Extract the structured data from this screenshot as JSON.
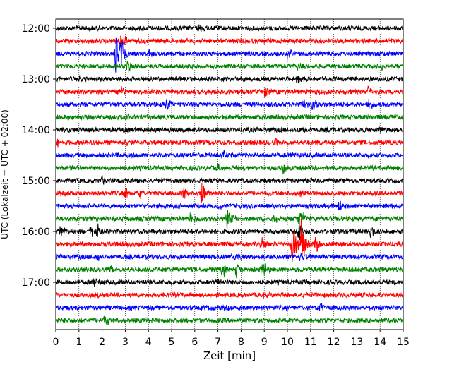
{
  "chart_data": {
    "type": "line",
    "title": "",
    "xlabel": "Zeit  [min]",
    "ylabel": "UTC (Lokalzeit = UTC + 02:00)",
    "xlim": [
      0,
      15
    ],
    "x_ticks": [
      0,
      1,
      2,
      3,
      4,
      5,
      6,
      7,
      8,
      9,
      10,
      11,
      12,
      13,
      14,
      15
    ],
    "x_tick_labels": [
      "0",
      "1",
      "2",
      "3",
      "4",
      "5",
      "6",
      "7",
      "8",
      "9",
      "10",
      "11",
      "12",
      "13",
      "14",
      "15"
    ],
    "y_tick_labels": [
      "12:00",
      "13:00",
      "14:00",
      "15:00",
      "16:00",
      "17:00"
    ],
    "y_tick_traces": [
      0,
      4,
      8,
      12,
      16,
      20
    ],
    "trace_interval_min": 15,
    "start_time": "12:00",
    "grid": "x-dotted",
    "colors": [
      "#000000",
      "#ff0000",
      "#0000ff",
      "#008000"
    ],
    "series": [
      {
        "start": "12:00",
        "color": "#000000",
        "events": [
          {
            "t": 6.2,
            "amp": 0.35
          }
        ]
      },
      {
        "start": "12:15",
        "color": "#ff0000",
        "events": [
          {
            "t": 2.8,
            "amp": 0.9
          }
        ]
      },
      {
        "start": "12:30",
        "color": "#0000ff",
        "events": [
          {
            "t": 2.6,
            "amp": 2.0
          },
          {
            "t": 2.8,
            "amp": 1.4
          },
          {
            "t": 4.0,
            "amp": 0.5
          },
          {
            "t": 10.0,
            "amp": 0.6
          }
        ]
      },
      {
        "start": "12:45",
        "color": "#008000",
        "events": [
          {
            "t": 3.1,
            "amp": 0.6
          },
          {
            "t": 10.4,
            "amp": 0.3
          },
          {
            "t": 14.0,
            "amp": 0.3
          }
        ]
      },
      {
        "start": "13:00",
        "color": "#000000",
        "events": [
          {
            "t": 0.9,
            "amp": 0.3
          },
          {
            "t": 10.4,
            "amp": 0.7
          }
        ]
      },
      {
        "start": "13:15",
        "color": "#ff0000",
        "events": [
          {
            "t": 2.8,
            "amp": 0.5
          },
          {
            "t": 9.0,
            "amp": 0.4
          },
          {
            "t": 13.5,
            "amp": 0.5
          }
        ]
      },
      {
        "start": "13:30",
        "color": "#0000ff",
        "events": [
          {
            "t": 4.8,
            "amp": 0.6
          },
          {
            "t": 10.7,
            "amp": 0.6
          },
          {
            "t": 11.1,
            "amp": 0.9
          },
          {
            "t": 13.5,
            "amp": 0.4
          }
        ]
      },
      {
        "start": "13:45",
        "color": "#008000",
        "events": [
          {
            "t": 3.0,
            "amp": 0.3
          }
        ]
      },
      {
        "start": "14:00",
        "color": "#000000",
        "events": [
          {
            "t": 5.5,
            "amp": 0.3
          },
          {
            "t": 10.6,
            "amp": 0.3
          },
          {
            "t": 14.0,
            "amp": 0.3
          }
        ]
      },
      {
        "start": "14:15",
        "color": "#ff0000",
        "events": [
          {
            "t": 0.1,
            "amp": 0.4
          },
          {
            "t": 1.5,
            "amp": 0.3
          },
          {
            "t": 3.0,
            "amp": 0.3
          },
          {
            "t": 9.5,
            "amp": 0.3
          }
        ]
      },
      {
        "start": "14:30",
        "color": "#0000ff",
        "events": [
          {
            "t": 7.2,
            "amp": 0.4
          },
          {
            "t": 10.0,
            "amp": 0.3
          }
        ]
      },
      {
        "start": "14:45",
        "color": "#008000",
        "events": [
          {
            "t": 9.8,
            "amp": 0.5
          },
          {
            "t": 7.0,
            "amp": 0.3
          }
        ]
      },
      {
        "start": "15:00",
        "color": "#000000",
        "events": [
          {
            "t": 2.0,
            "amp": 0.3
          },
          {
            "t": 11.5,
            "amp": 0.3
          }
        ]
      },
      {
        "start": "15:15",
        "color": "#ff0000",
        "events": [
          {
            "t": 3.0,
            "amp": 0.5
          },
          {
            "t": 3.6,
            "amp": 0.4
          },
          {
            "t": 5.5,
            "amp": 0.7
          },
          {
            "t": 6.3,
            "amp": 1.0
          },
          {
            "t": 10.5,
            "amp": 0.4
          }
        ]
      },
      {
        "start": "15:30",
        "color": "#0000ff",
        "events": [
          {
            "t": 7.0,
            "amp": 0.3
          },
          {
            "t": 12.2,
            "amp": 0.5
          }
        ]
      },
      {
        "start": "15:45",
        "color": "#008000",
        "events": [
          {
            "t": 5.8,
            "amp": 0.4
          },
          {
            "t": 7.4,
            "amp": 0.9
          },
          {
            "t": 9.4,
            "amp": 0.5
          },
          {
            "t": 10.5,
            "amp": 1.2
          }
        ]
      },
      {
        "start": "16:00",
        "color": "#000000",
        "events": [
          {
            "t": 0.2,
            "amp": 0.5
          },
          {
            "t": 1.5,
            "amp": 0.5
          },
          {
            "t": 1.8,
            "amp": 0.8
          },
          {
            "t": 10.5,
            "amp": 0.8
          },
          {
            "t": 13.6,
            "amp": 0.4
          }
        ]
      },
      {
        "start": "16:15",
        "color": "#ff0000",
        "events": [
          {
            "t": 8.9,
            "amp": 0.6
          },
          {
            "t": 10.2,
            "amp": 2.0
          },
          {
            "t": 10.6,
            "amp": 2.0
          },
          {
            "t": 11.2,
            "amp": 0.8
          }
        ]
      },
      {
        "start": "16:30",
        "color": "#0000ff",
        "events": [
          {
            "t": 1.8,
            "amp": 0.3
          },
          {
            "t": 7.6,
            "amp": 0.6
          },
          {
            "t": 10.5,
            "amp": 0.6
          }
        ]
      },
      {
        "start": "16:45",
        "color": "#008000",
        "events": [
          {
            "t": 2.4,
            "amp": 0.3
          },
          {
            "t": 7.2,
            "amp": 0.6
          },
          {
            "t": 7.8,
            "amp": 0.6
          },
          {
            "t": 8.9,
            "amp": 0.8
          }
        ]
      },
      {
        "start": "17:00",
        "color": "#000000",
        "events": [
          {
            "t": 1.6,
            "amp": 0.6
          },
          {
            "t": 6.9,
            "amp": 0.3
          }
        ]
      },
      {
        "start": "17:15",
        "color": "#ff0000",
        "events": [
          {
            "t": 1.7,
            "amp": 0.3
          },
          {
            "t": 8.9,
            "amp": 0.3
          }
        ]
      },
      {
        "start": "17:30",
        "color": "#0000ff",
        "events": [
          {
            "t": 10.0,
            "amp": 0.3
          },
          {
            "t": 11.4,
            "amp": 0.4
          }
        ]
      },
      {
        "start": "17:45",
        "color": "#008000",
        "events": [
          {
            "t": 2.1,
            "amp": 0.6
          }
        ]
      }
    ]
  }
}
